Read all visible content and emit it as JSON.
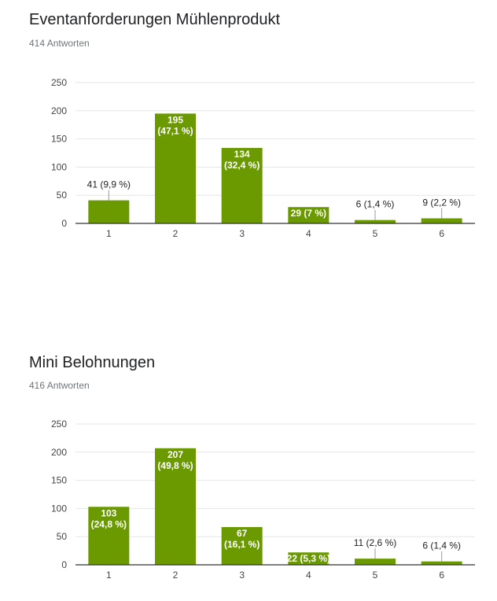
{
  "questions": [
    {
      "title": "Eventanforderungen Mühlenprodukt",
      "responses": "414 Antworten"
    },
    {
      "title": "Mini Belohnungen",
      "responses": "416 Antworten"
    }
  ],
  "colors": {
    "bar": "#6a9a00",
    "grid": "#e5e5e5",
    "baseline": "#333333"
  },
  "chart_data": [
    {
      "type": "bar",
      "title": "Eventanforderungen Mühlenprodukt",
      "categories": [
        "1",
        "2",
        "3",
        "4",
        "5",
        "6"
      ],
      "values": [
        41,
        195,
        134,
        29,
        6,
        9
      ],
      "data_labels": [
        [
          "41 (9,9 %)"
        ],
        [
          "195",
          "(47,1 %)"
        ],
        [
          "134",
          "(32,4 %)"
        ],
        [
          "29 (7 %)"
        ],
        [
          "6 (1,4 %)"
        ],
        [
          "9 (2,2 %)"
        ]
      ],
      "label_inside": [
        false,
        true,
        true,
        true,
        false,
        false
      ],
      "yticks": [
        "0",
        "50",
        "100",
        "150",
        "200",
        "250"
      ],
      "ylim": [
        0,
        250
      ],
      "grid": true
    },
    {
      "type": "bar",
      "title": "Mini Belohnungen",
      "categories": [
        "1",
        "2",
        "3",
        "4",
        "5",
        "6"
      ],
      "values": [
        103,
        207,
        67,
        22,
        11,
        6
      ],
      "data_labels": [
        [
          "103",
          "(24,8 %)"
        ],
        [
          "207",
          "(49,8 %)"
        ],
        [
          "67",
          "(16,1 %)"
        ],
        [
          "22 (5,3 %)"
        ],
        [
          "11 (2,6 %)"
        ],
        [
          "6 (1,4 %)"
        ]
      ],
      "label_inside": [
        true,
        true,
        true,
        true,
        false,
        false
      ],
      "yticks": [
        "0",
        "50",
        "100",
        "150",
        "200",
        "250"
      ],
      "ylim": [
        0,
        250
      ],
      "grid": true
    }
  ]
}
